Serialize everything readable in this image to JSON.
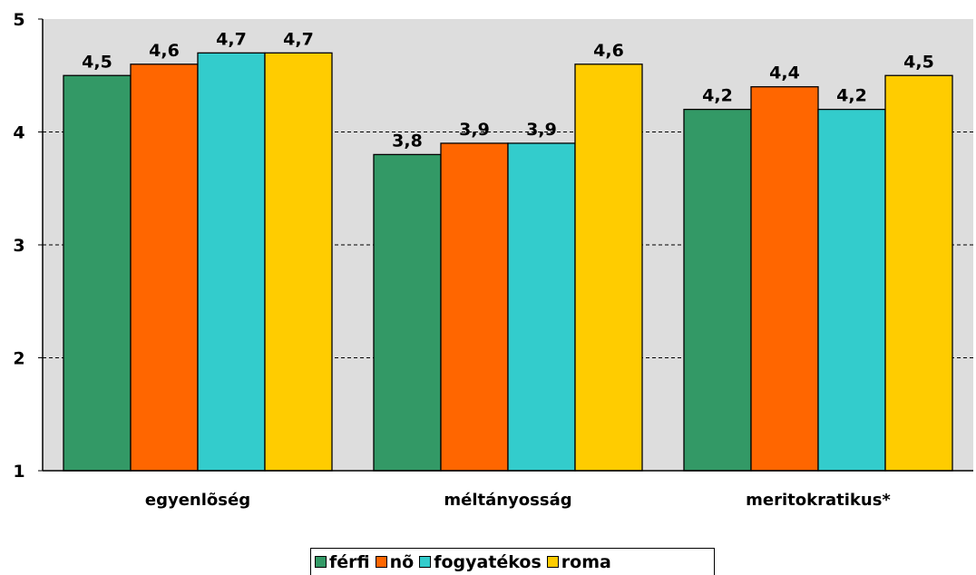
{
  "chart_data": {
    "type": "bar",
    "categories": [
      "egyenlõség",
      "méltányosság",
      "meritokratikus*"
    ],
    "series": [
      {
        "name": "férfi",
        "values": [
          4.5,
          3.8,
          4.2
        ],
        "color": "#339966"
      },
      {
        "name": "nõ",
        "values": [
          4.6,
          3.9,
          4.4
        ],
        "color": "#ff6600"
      },
      {
        "name": "fogyatékos",
        "values": [
          4.7,
          3.9,
          4.2
        ],
        "color": "#33cccc"
      },
      {
        "name": "roma",
        "values": [
          4.7,
          4.6,
          4.5
        ],
        "color": "#ffcc00"
      }
    ],
    "value_labels": [
      [
        "4,5",
        "3,8",
        "4,2"
      ],
      [
        "4,6",
        "3,9",
        "4,4"
      ],
      [
        "4,7",
        "3,9",
        "4,2"
      ],
      [
        "4,7",
        "4,6",
        "4,5"
      ]
    ],
    "ylim": [
      1,
      5
    ],
    "yticks": [
      1,
      2,
      3,
      4,
      5
    ],
    "ytick_labels": [
      "1",
      "2",
      "3",
      "4",
      "5"
    ],
    "grid": true,
    "plot_background": "#dddddd",
    "legend_position": "bottom"
  }
}
